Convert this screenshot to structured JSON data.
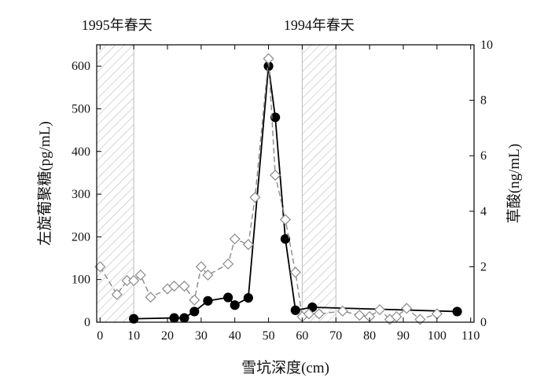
{
  "colors": {
    "left_series": "#000000",
    "right_series": "#8a8a8a",
    "right_marker_fill": "#ffffff",
    "shade": "#bbbbbb"
  },
  "chart_data": {
    "type": "line",
    "xlabel": "雪坑深度(cm)",
    "ylabel_left": "左旋葡聚糖(pg/mL)",
    "ylabel_right": "草酸(ng/mL)",
    "xlim": [
      -1,
      111
    ],
    "ylim_left": [
      0,
      650
    ],
    "ylim_right": [
      0,
      10
    ],
    "x_ticks": [
      0,
      10,
      20,
      30,
      40,
      50,
      60,
      70,
      80,
      90,
      100,
      110
    ],
    "y_left_ticks": [
      0,
      100,
      200,
      300,
      400,
      500,
      600
    ],
    "y_right_ticks": [
      0,
      2,
      4,
      6,
      8,
      10
    ],
    "grid": false,
    "annotations": [
      {
        "text": "1995年春天",
        "x": 5
      },
      {
        "text": "1994年春天",
        "x": 65
      }
    ],
    "shaded_regions": [
      [
        -1,
        10
      ],
      [
        60,
        70
      ]
    ],
    "series": [
      {
        "axis": "left",
        "marker": "filled-circle",
        "line": "solid",
        "points": [
          [
            10,
            8
          ],
          [
            22,
            10
          ],
          [
            25,
            10
          ],
          [
            28,
            25
          ],
          [
            32,
            50
          ],
          [
            38,
            58
          ],
          [
            40,
            40
          ],
          [
            44,
            57
          ],
          [
            50,
            600
          ],
          [
            52,
            480
          ],
          [
            55,
            195
          ],
          [
            58,
            28
          ],
          [
            63,
            35
          ],
          [
            106,
            25
          ]
        ]
      },
      {
        "axis": "right",
        "marker": "open-diamond",
        "line": "dashed",
        "points": [
          [
            0,
            2.0
          ],
          [
            5,
            1.0
          ],
          [
            8,
            1.5
          ],
          [
            10,
            1.5
          ],
          [
            12,
            1.7
          ],
          [
            15,
            0.9
          ],
          [
            20,
            1.2
          ],
          [
            22,
            1.3
          ],
          [
            25,
            1.3
          ],
          [
            28,
            0.8
          ],
          [
            30,
            2.0
          ],
          [
            32,
            1.7
          ],
          [
            38,
            2.1
          ],
          [
            40,
            3.0
          ],
          [
            44,
            2.8
          ],
          [
            46,
            4.5
          ],
          [
            50,
            9.5
          ],
          [
            52,
            5.3
          ],
          [
            55,
            3.7
          ],
          [
            58,
            1.8
          ],
          [
            60,
            0.2
          ],
          [
            62,
            0.3
          ],
          [
            65,
            0.3
          ],
          [
            72,
            0.4
          ],
          [
            77,
            0.25
          ],
          [
            80,
            0.2
          ],
          [
            83,
            0.45
          ],
          [
            86,
            0.1
          ],
          [
            88,
            0.2
          ],
          [
            91,
            0.5
          ],
          [
            95,
            0.1
          ],
          [
            100,
            0.3
          ]
        ]
      }
    ]
  }
}
